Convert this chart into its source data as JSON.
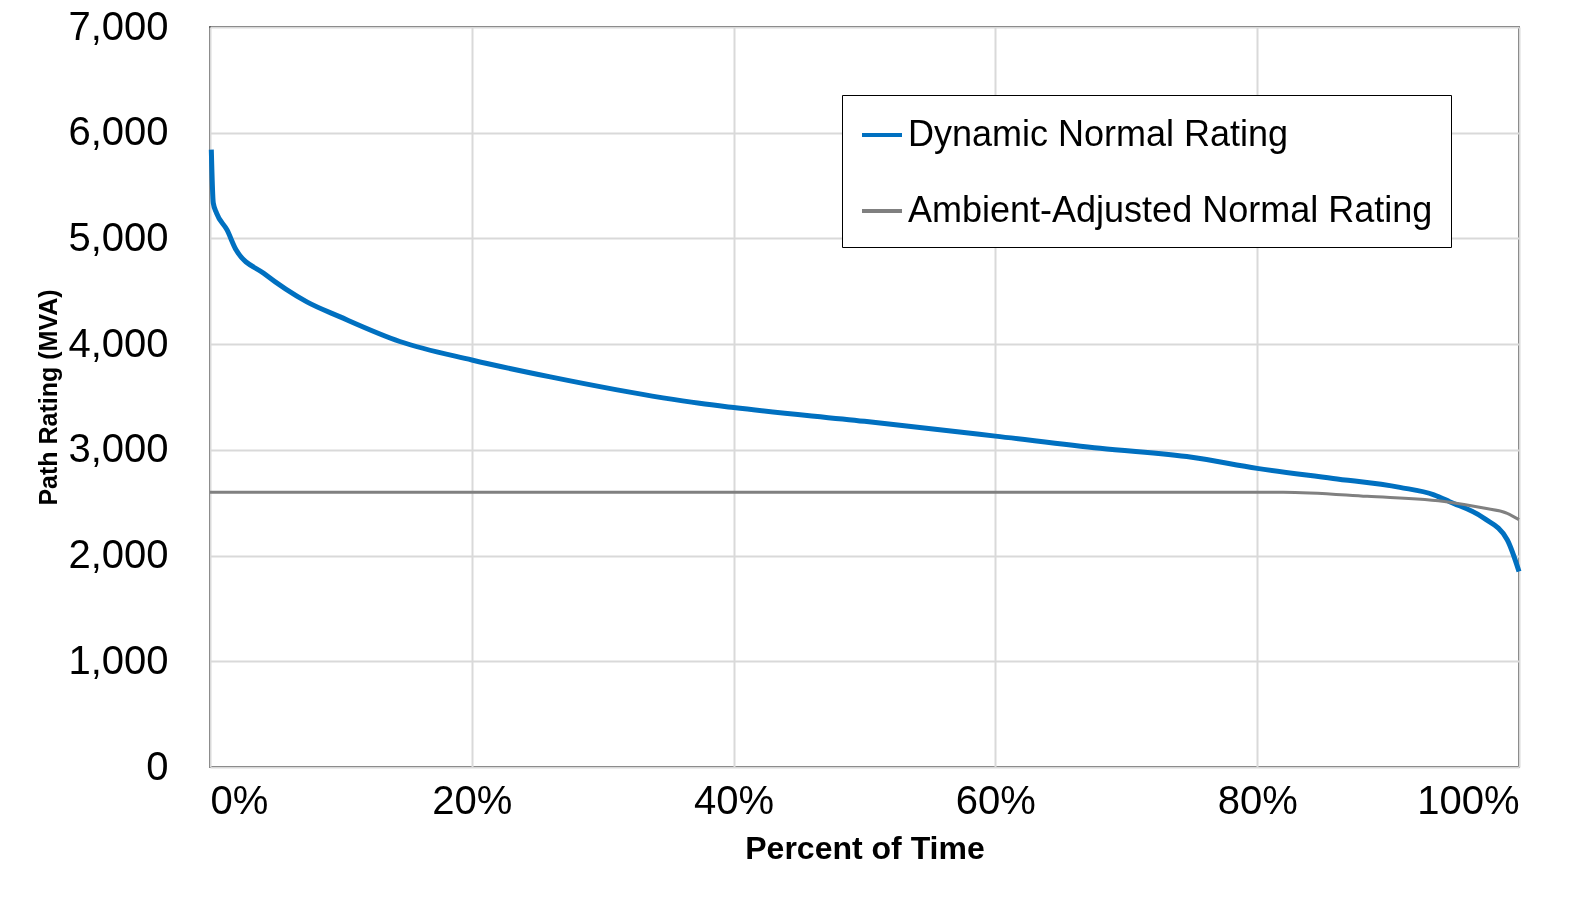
{
  "chart_data": {
    "type": "line",
    "xlabel": "Percent of Time",
    "ylabel": "Path Rating (MVA)",
    "xlim": [
      0,
      100
    ],
    "xticks": [
      {
        "value": 0,
        "label": "0%"
      },
      {
        "value": 20,
        "label": "20%"
      },
      {
        "value": 40,
        "label": "40%"
      },
      {
        "value": 60,
        "label": "60%"
      },
      {
        "value": 80,
        "label": "80%"
      },
      {
        "value": 100,
        "label": "100%"
      }
    ],
    "ylim": [
      0,
      7000
    ],
    "yticks": [
      0,
      {
        "value": 1000,
        "label": "1,000"
      },
      {
        "value": 2000,
        "label": "2,000"
      },
      {
        "value": 3000,
        "label": "3,000"
      },
      {
        "value": 4000,
        "label": "4,000"
      },
      {
        "value": 5000,
        "label": "5,000"
      },
      {
        "value": 6000,
        "label": "6,000"
      },
      {
        "value": 7000,
        "label": "7,000"
      }
    ],
    "grid": true,
    "legend": "top right",
    "line_style": "solid",
    "series": [
      {
        "name": "Dynamic Normal Rating",
        "color": "#0070c0",
        "x": [
          0.1,
          0.25,
          0.5,
          1.3,
          2,
          4.1,
          7.4,
          9.9,
          14.5,
          20,
          26,
          31,
          37.4,
          40,
          50,
          60,
          68,
          75,
          80,
          85.8,
          90.9,
          93.5,
          94.7,
          97.3,
          99.1,
          100
        ],
        "values": [
          5840,
          5335,
          5240,
          5080,
          4890,
          4670,
          4400,
          4260,
          4025,
          3850,
          3690,
          3570,
          3440,
          3400,
          3270,
          3130,
          3015,
          2930,
          2825,
          2730,
          2645,
          2575,
          2510,
          2355,
          2150,
          1850
        ]
      },
      {
        "name": "Ambient-Adjusted Normal Rating",
        "color": "#808080",
        "x": [
          0,
          82,
          88.4,
          94.7,
          97.3,
          99.1,
          100
        ],
        "values": [
          2600,
          2600,
          2560,
          2505,
          2450,
          2400,
          2340
        ]
      }
    ]
  }
}
